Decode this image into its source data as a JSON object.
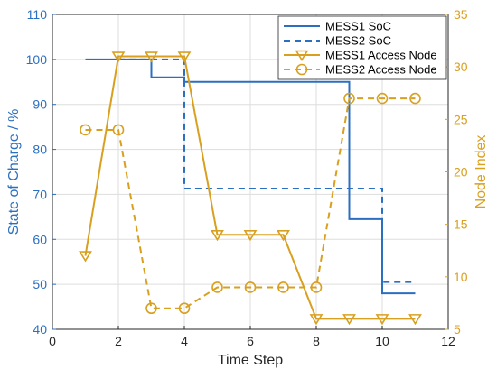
{
  "chart_data": {
    "type": "line",
    "xlabel": "Time Step",
    "ylabel_left": "State of Charge / %",
    "ylabel_right": "Node Index",
    "xlim": [
      0,
      12
    ],
    "ylim_left": [
      40,
      110
    ],
    "ylim_right": [
      5,
      35
    ],
    "x_ticks": [
      "0",
      "2",
      "4",
      "6",
      "8",
      "10",
      "12"
    ],
    "y_left_ticks": [
      "40",
      "50",
      "60",
      "70",
      "80",
      "90",
      "100",
      "110"
    ],
    "y_right_ticks": [
      "5",
      "10",
      "15",
      "20",
      "25",
      "30",
      "35"
    ],
    "grid": true,
    "legend_position": "top-right",
    "colors": {
      "soc": "#2b6fc0",
      "node": "#d9a020",
      "grid": "#dddddd",
      "axis_left": "#2b6fc0",
      "axis_right": "#d9a020"
    },
    "series": [
      {
        "name": "MESS1 SoC",
        "axis": "left",
        "style": "solid-step",
        "x": [
          1,
          3,
          3,
          4,
          4,
          9,
          9,
          10,
          10,
          11
        ],
        "y": [
          100,
          100,
          96,
          96,
          95,
          95,
          64.5,
          64.5,
          48,
          48
        ]
      },
      {
        "name": "MESS2 SoC",
        "axis": "left",
        "style": "dashed-step",
        "x": [
          2,
          4,
          4,
          10,
          10,
          11
        ],
        "y": [
          100,
          100,
          71.3,
          71.3,
          50.5,
          50.5
        ]
      },
      {
        "name": "MESS1 Access Node",
        "axis": "right",
        "style": "solid-triangle",
        "x": [
          1,
          2,
          3,
          4,
          5,
          6,
          7,
          8,
          9,
          10,
          11
        ],
        "y": [
          12,
          31,
          31,
          31,
          14,
          14,
          14,
          6,
          6,
          6,
          6
        ]
      },
      {
        "name": "MESS2 Access Node",
        "axis": "right",
        "style": "dashed-circle",
        "x": [
          1,
          2,
          3,
          4,
          5,
          6,
          7,
          8,
          9,
          10,
          11
        ],
        "y": [
          24,
          24,
          7,
          7,
          9,
          9,
          9,
          9,
          27,
          27,
          27
        ]
      }
    ]
  }
}
